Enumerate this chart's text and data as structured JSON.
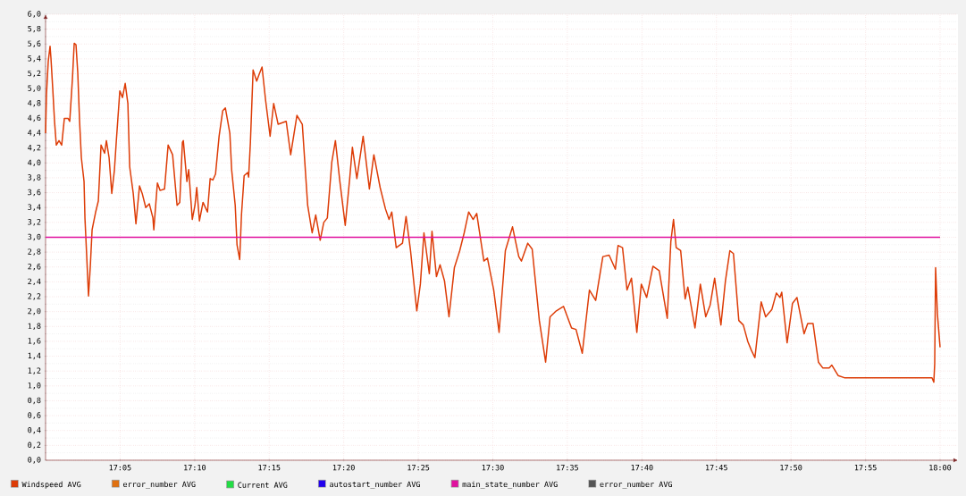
{
  "chart_data": {
    "type": "line",
    "xlim": [
      17.0,
      18.02
    ],
    "ylim": [
      0,
      6
    ],
    "xticks": [
      {
        "value": 17.0833,
        "label": "17:05"
      },
      {
        "value": 17.1667,
        "label": "17:10"
      },
      {
        "value": 17.25,
        "label": "17:15"
      },
      {
        "value": 17.3333,
        "label": "17:20"
      },
      {
        "value": 17.4167,
        "label": "17:25"
      },
      {
        "value": 17.5,
        "label": "17:30"
      },
      {
        "value": 17.5833,
        "label": "17:35"
      },
      {
        "value": 17.6667,
        "label": "17:40"
      },
      {
        "value": 17.75,
        "label": "17:45"
      },
      {
        "value": 17.8333,
        "label": "17:50"
      },
      {
        "value": 17.9167,
        "label": "17:55"
      },
      {
        "value": 18.0,
        "label": "18:00"
      }
    ],
    "yticks": [
      {
        "value": 0,
        "label": "0,0"
      },
      {
        "value": 0.2,
        "label": "0,2"
      },
      {
        "value": 0.4,
        "label": "0,4"
      },
      {
        "value": 0.6,
        "label": "0,6"
      },
      {
        "value": 0.8,
        "label": "0,8"
      },
      {
        "value": 1.0,
        "label": "1,0"
      },
      {
        "value": 1.2,
        "label": "1,2"
      },
      {
        "value": 1.4,
        "label": "1,4"
      },
      {
        "value": 1.6,
        "label": "1,6"
      },
      {
        "value": 1.8,
        "label": "1,8"
      },
      {
        "value": 2.0,
        "label": "2,0"
      },
      {
        "value": 2.2,
        "label": "2,2"
      },
      {
        "value": 2.4,
        "label": "2,4"
      },
      {
        "value": 2.6,
        "label": "2,6"
      },
      {
        "value": 2.8,
        "label": "2,8"
      },
      {
        "value": 3.0,
        "label": "3,0"
      },
      {
        "value": 3.2,
        "label": "3,2"
      },
      {
        "value": 3.4,
        "label": "3,4"
      },
      {
        "value": 3.6,
        "label": "3,6"
      },
      {
        "value": 3.8,
        "label": "3,8"
      },
      {
        "value": 4.0,
        "label": "4,0"
      },
      {
        "value": 4.2,
        "label": "4,2"
      },
      {
        "value": 4.4,
        "label": "4,4"
      },
      {
        "value": 4.6,
        "label": "4,6"
      },
      {
        "value": 4.8,
        "label": "4,8"
      },
      {
        "value": 5.0,
        "label": "5,0"
      },
      {
        "value": 5.2,
        "label": "5,2"
      },
      {
        "value": 5.4,
        "label": "5,4"
      },
      {
        "value": 5.6,
        "label": "5,6"
      },
      {
        "value": 5.8,
        "label": "5,8"
      },
      {
        "value": 6.0,
        "label": "6,0"
      }
    ],
    "grid": true,
    "legend": "bottom left",
    "series": [
      {
        "name": "Windspeed AVG",
        "color": "#dd3c07",
        "x": [
          17.0,
          17.001,
          17.003,
          17.005,
          17.006,
          17.008,
          17.01,
          17.012,
          17.015,
          17.018,
          17.021,
          17.025,
          17.027,
          17.03,
          17.032,
          17.034,
          17.036,
          17.038,
          17.04,
          17.043,
          17.044,
          17.046,
          17.048,
          17.05,
          17.052,
          17.056,
          17.059,
          17.062,
          17.066,
          17.068,
          17.071,
          17.074,
          17.077,
          17.079,
          17.083,
          17.086,
          17.089,
          17.092,
          17.094,
          17.098,
          17.101,
          17.105,
          17.108,
          17.112,
          17.116,
          17.12,
          17.121,
          17.125,
          17.128,
          17.133,
          17.137,
          17.142,
          17.147,
          17.15,
          17.153,
          17.154,
          17.158,
          17.16,
          17.164,
          17.167,
          17.169,
          17.172,
          17.176,
          17.181,
          17.184,
          17.187,
          17.19,
          17.194,
          17.198,
          17.201,
          17.206,
          17.208,
          17.212,
          17.214,
          17.217,
          17.219,
          17.222,
          17.226,
          17.227,
          17.229,
          17.232,
          17.236,
          17.239,
          17.242,
          17.246,
          17.251,
          17.255,
          17.26,
          17.269,
          17.274,
          17.281,
          17.287,
          17.293,
          17.298,
          17.302,
          17.307,
          17.311,
          17.315,
          17.32,
          17.324,
          17.329,
          17.335,
          17.34,
          17.343,
          17.348,
          17.355,
          17.362,
          17.367,
          17.374,
          17.38,
          17.384,
          17.387,
          17.392,
          17.399,
          17.403,
          17.408,
          17.415,
          17.419,
          17.423,
          17.429,
          17.432,
          17.437,
          17.441,
          17.446,
          17.451,
          17.457,
          17.463,
          17.468,
          17.473,
          17.478,
          17.482,
          17.49,
          17.494,
          17.501,
          17.507,
          17.514,
          17.522,
          17.529,
          17.532,
          17.539,
          17.544,
          17.552,
          17.559,
          17.564,
          17.571,
          17.579,
          17.588,
          17.593,
          17.6,
          17.608,
          17.615,
          17.623,
          17.63,
          17.637,
          17.64,
          17.645,
          17.65,
          17.655,
          17.661,
          17.666,
          17.672,
          17.679,
          17.686,
          17.695,
          17.699,
          17.702,
          17.705,
          17.71,
          17.715,
          17.718,
          17.726,
          17.732,
          17.738,
          17.743,
          17.748,
          17.755,
          17.76,
          17.765,
          17.769,
          17.775,
          17.78,
          17.785,
          17.789,
          17.793,
          17.8,
          17.805,
          17.812,
          17.817,
          17.821,
          17.823,
          17.829,
          17.835,
          17.84,
          17.848,
          17.852,
          17.858,
          17.864,
          17.869,
          17.876,
          17.879,
          17.886,
          17.893,
          17.991,
          17.993,
          17.994,
          17.995,
          17.997,
          18.0
        ],
        "values": [
          4.4,
          4.92,
          5.37,
          5.57,
          5.41,
          5.0,
          4.56,
          4.24,
          4.3,
          4.24,
          4.6,
          4.6,
          4.56,
          5.13,
          5.61,
          5.59,
          5.21,
          4.56,
          4.07,
          3.75,
          3.26,
          2.74,
          2.21,
          2.61,
          3.1,
          3.34,
          3.49,
          4.24,
          4.13,
          4.3,
          4.07,
          3.59,
          3.91,
          4.28,
          4.97,
          4.88,
          5.07,
          4.8,
          3.95,
          3.59,
          3.18,
          3.69,
          3.59,
          3.4,
          3.45,
          3.26,
          3.1,
          3.73,
          3.63,
          3.65,
          4.24,
          4.11,
          3.43,
          3.47,
          4.28,
          4.3,
          3.75,
          3.91,
          3.24,
          3.43,
          3.67,
          3.22,
          3.47,
          3.34,
          3.79,
          3.77,
          3.85,
          4.36,
          4.7,
          4.74,
          4.4,
          3.91,
          3.43,
          2.9,
          2.7,
          3.3,
          3.83,
          3.87,
          3.81,
          4.28,
          5.25,
          5.1,
          5.2,
          5.29,
          4.84,
          4.36,
          4.8,
          4.52,
          4.56,
          4.11,
          4.64,
          4.52,
          3.43,
          3.06,
          3.3,
          2.96,
          3.2,
          3.26,
          4.01,
          4.3,
          3.75,
          3.16,
          3.79,
          4.21,
          3.79,
          4.36,
          3.65,
          4.11,
          3.67,
          3.38,
          3.24,
          3.34,
          2.86,
          2.92,
          3.28,
          2.82,
          2.01,
          2.37,
          3.06,
          2.51,
          3.08,
          2.47,
          2.63,
          2.41,
          1.93,
          2.59,
          2.82,
          3.06,
          3.34,
          3.24,
          3.32,
          2.68,
          2.72,
          2.29,
          1.72,
          2.82,
          3.14,
          2.74,
          2.68,
          2.92,
          2.84,
          1.88,
          1.32,
          1.93,
          2.01,
          2.07,
          1.78,
          1.76,
          1.44,
          2.29,
          2.15,
          2.74,
          2.76,
          2.57,
          2.89,
          2.86,
          2.29,
          2.45,
          1.72,
          2.37,
          2.19,
          2.61,
          2.55,
          1.91,
          2.94,
          3.24,
          2.86,
          2.82,
          2.17,
          2.33,
          1.78,
          2.37,
          1.93,
          2.09,
          2.45,
          1.82,
          2.41,
          2.82,
          2.78,
          1.88,
          1.82,
          1.6,
          1.48,
          1.38,
          2.13,
          1.93,
          2.03,
          2.25,
          2.19,
          2.26,
          1.58,
          2.11,
          2.19,
          1.7,
          1.84,
          1.84,
          1.32,
          1.24,
          1.24,
          1.28,
          1.14,
          1.11,
          1.11,
          1.05,
          1.3,
          2.59,
          1.97,
          1.52
        ]
      },
      {
        "name": "error_number AVG",
        "color": "#e07010"
      },
      {
        "name": "Current AVG",
        "color": "#22dd44"
      },
      {
        "name": "autostart_number AVG",
        "color": "#2200ee"
      },
      {
        "name": "main_state_number AVG",
        "color": "#e0109e",
        "x": [
          17.0,
          18.0
        ],
        "values": [
          3,
          3
        ]
      },
      {
        "name": "error_number AVG",
        "color": "#555555"
      }
    ]
  }
}
